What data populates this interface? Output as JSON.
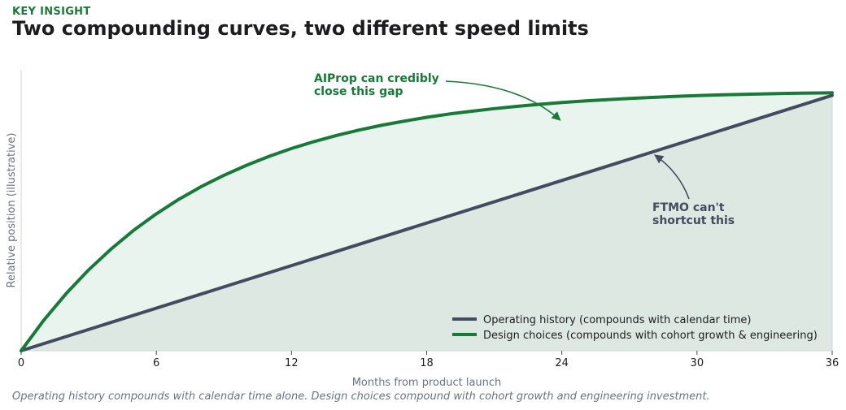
{
  "header": {
    "eyebrow": "KEY INSIGHT",
    "title": "Two compounding curves, two different speed limits"
  },
  "caption": "Operating history compounds with calendar time alone. Design choices compound with cohort growth and engineering investment.",
  "colors": {
    "green": "#177a38",
    "slate": "#424c5e",
    "green_fill": "#eaf4ee",
    "slate_fill": "#dde8e3"
  },
  "chart_data": {
    "type": "line",
    "xlabel": "Months from product launch",
    "ylabel": "Relative position (illustrative)",
    "xlim": [
      0,
      36
    ],
    "ylim": [
      0,
      1.1
    ],
    "xticks": [
      0,
      6,
      12,
      18,
      24,
      30,
      36
    ],
    "yticks": [],
    "grid": false,
    "legend_position": "bottom-right",
    "series": [
      {
        "name": "Operating history (compounds with calendar time)",
        "color": "#424c5e",
        "x": [
          0,
          36
        ],
        "y": [
          0,
          1.0
        ]
      },
      {
        "name": "Design choices (compounds with cohort growth & engineering)",
        "color": "#177a38",
        "x": [
          0,
          1,
          2,
          3,
          4,
          5,
          6,
          7,
          8,
          9,
          10,
          11,
          12,
          13,
          14,
          15,
          16,
          17,
          18,
          19,
          20,
          21,
          22,
          23,
          24,
          25,
          26,
          27,
          28,
          29,
          30,
          31,
          32,
          33,
          34,
          35,
          36
        ],
        "y": [
          0,
          0.119,
          0.224,
          0.317,
          0.399,
          0.472,
          0.536,
          0.593,
          0.643,
          0.687,
          0.726,
          0.761,
          0.792,
          0.819,
          0.843,
          0.864,
          0.883,
          0.899,
          0.914,
          0.927,
          0.938,
          0.948,
          0.957,
          0.965,
          0.972,
          0.978,
          0.983,
          0.988,
          0.992,
          0.996,
          0.999,
          1.002,
          1.004,
          1.006,
          1.008,
          1.009,
          1.01
        ]
      }
    ],
    "annotations": [
      {
        "lines": [
          "AIProp can credibly",
          "close this gap"
        ],
        "color": "#177a38",
        "target_x": 24,
        "target_y": 0.91
      },
      {
        "lines": [
          "FTMO can't",
          "shortcut this"
        ],
        "color": "#424c5e",
        "target_x": 28,
        "target_y": 0.78
      }
    ]
  }
}
